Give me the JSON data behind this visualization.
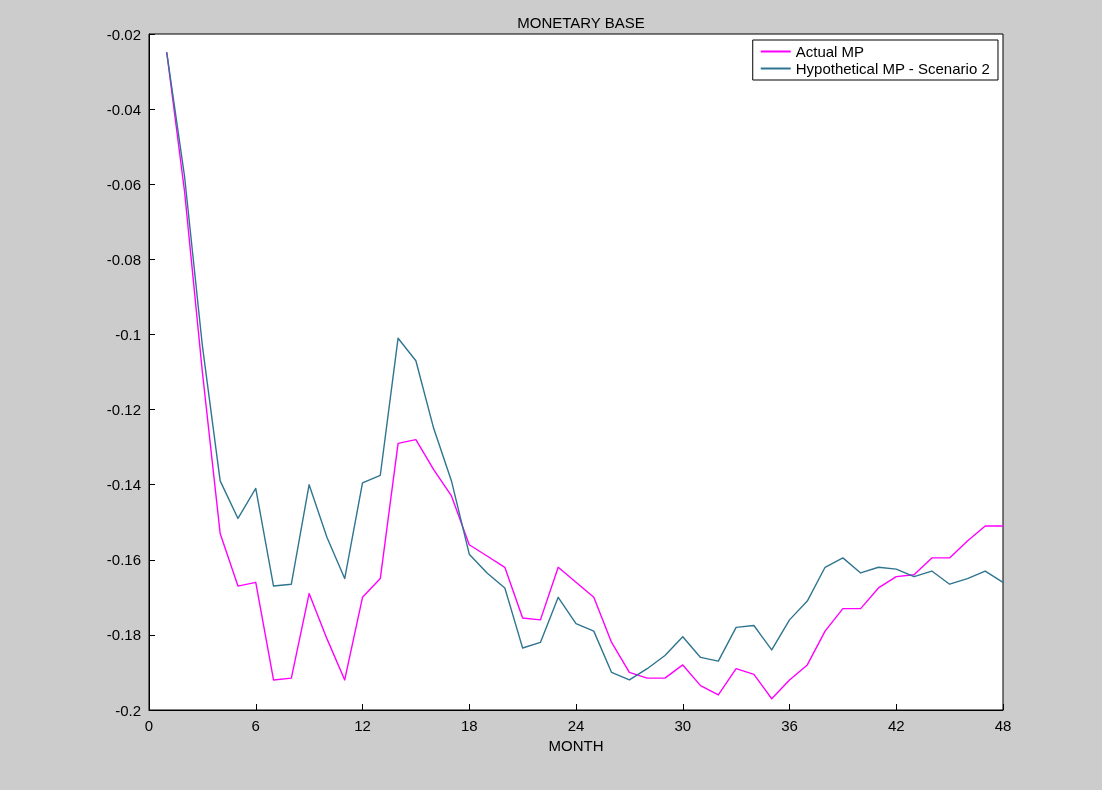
{
  "chart_data": {
    "type": "line",
    "title": "MONETARY BASE",
    "xlabel": "MONTH",
    "x": [
      1,
      2,
      3,
      4,
      5,
      6,
      7,
      8,
      9,
      10,
      11,
      12,
      13,
      14,
      15,
      16,
      17,
      18,
      19,
      20,
      21,
      22,
      23,
      24,
      25,
      26,
      27,
      28,
      29,
      30,
      31,
      32,
      33,
      34,
      35,
      36,
      37,
      38,
      39,
      40,
      41,
      42,
      43,
      44,
      45,
      46,
      47,
      48
    ],
    "series": [
      {
        "name": "Actual MP",
        "color": "#ff00ff",
        "values": [
          -0.025,
          -0.062,
          -0.11,
          -0.153,
          -0.167,
          -0.166,
          -0.192,
          -0.1915,
          -0.169,
          -0.181,
          -0.192,
          -0.17,
          -0.165,
          -0.129,
          -0.128,
          -0.136,
          -0.143,
          -0.156,
          -0.159,
          -0.162,
          -0.1755,
          -0.176,
          -0.162,
          -0.166,
          -0.17,
          -0.182,
          -0.19,
          -0.1915,
          -0.1915,
          -0.188,
          -0.1935,
          -0.196,
          -0.189,
          -0.1905,
          -0.197,
          -0.192,
          -0.188,
          -0.179,
          -0.173,
          -0.173,
          -0.1675,
          -0.1645,
          -0.164,
          -0.1595,
          -0.1595,
          -0.155,
          -0.151,
          -0.151
        ]
      },
      {
        "name": "Hypothetical MP - Scenario 2",
        "color": "#2f7590",
        "values": [
          -0.025,
          -0.058,
          -0.103,
          -0.139,
          -0.149,
          -0.141,
          -0.167,
          -0.1665,
          -0.14,
          -0.154,
          -0.165,
          -0.1395,
          -0.1375,
          -0.101,
          -0.107,
          -0.125,
          -0.139,
          -0.1585,
          -0.1635,
          -0.1675,
          -0.1835,
          -0.182,
          -0.17,
          -0.177,
          -0.179,
          -0.19,
          -0.192,
          -0.189,
          -0.1855,
          -0.1805,
          -0.186,
          -0.187,
          -0.178,
          -0.1775,
          -0.184,
          -0.176,
          -0.171,
          -0.162,
          -0.1595,
          -0.1635,
          -0.162,
          -0.1625,
          -0.1645,
          -0.163,
          -0.1665,
          -0.165,
          -0.163,
          -0.166
        ]
      }
    ],
    "xlim": [
      0,
      48
    ],
    "xticks": [
      0,
      6,
      12,
      18,
      24,
      30,
      36,
      42,
      48
    ],
    "ylim": [
      -0.2,
      -0.02
    ],
    "yticks": [
      -0.2,
      -0.18,
      -0.16,
      -0.14,
      -0.12,
      -0.1,
      -0.08,
      -0.06,
      -0.04,
      -0.02
    ],
    "grid": false,
    "legend": "top right",
    "marker": "none",
    "line_style": "solid"
  }
}
